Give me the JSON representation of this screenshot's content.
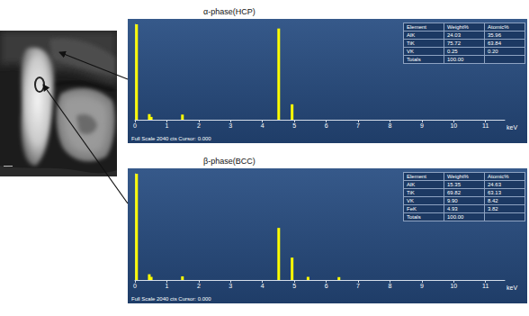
{
  "chart_data": [
    {
      "type": "bar",
      "title": "α-phase(HCP)",
      "color": "#ffff00",
      "x": [
        0.05,
        0.45,
        0.51,
        1.49,
        4.51,
        4.93
      ],
      "values": [
        2040,
        120,
        60,
        110,
        1950,
        330
      ],
      "xlim": [
        0,
        11.6
      ],
      "xticks": [
        0,
        1,
        2,
        3,
        4,
        5,
        6,
        7,
        8,
        9,
        10,
        11
      ],
      "xlabel": "keV",
      "ylim": [
        0,
        2040
      ],
      "tick_labels": "x",
      "grid": false,
      "footer": "Full Scale 2040 cts Cursor: 0.000",
      "table": {
        "header": [
          "Element",
          "Weight%",
          "Atomic%"
        ],
        "rows": [
          [
            "AlK",
            "24.03",
            "35.96"
          ],
          [
            "TiK",
            "75.72",
            "63.84"
          ],
          [
            "VK",
            "0.25",
            "0.20"
          ],
          [
            "Totals",
            "100.00"
          ]
        ]
      }
    },
    {
      "type": "bar",
      "title": "β-phase(BCC)",
      "color": "#ffff00",
      "x": [
        0.05,
        0.45,
        0.51,
        1.49,
        4.51,
        4.93,
        5.43,
        6.4
      ],
      "values": [
        2040,
        110,
        60,
        70,
        1000,
        430,
        60,
        55
      ],
      "xlim": [
        0,
        11.6
      ],
      "xticks": [
        0,
        1,
        2,
        3,
        4,
        5,
        6,
        7,
        8,
        9,
        10,
        11
      ],
      "xlabel": "keV",
      "ylim": [
        0,
        2040
      ],
      "tick_labels": "x",
      "grid": false,
      "footer": "Full Scale 2040 cts Cursor: 0.000",
      "table": {
        "header": [
          "Element",
          "Weight%",
          "Atomic%"
        ],
        "rows": [
          [
            "AlK",
            "15.35",
            "24.63"
          ],
          [
            "TiK",
            "69.82",
            "63.13"
          ],
          [
            "VK",
            "9.90",
            "8.42"
          ],
          [
            "FeK",
            "4.93",
            "3.82"
          ],
          [
            "Totals",
            "100.00"
          ]
        ]
      }
    }
  ]
}
